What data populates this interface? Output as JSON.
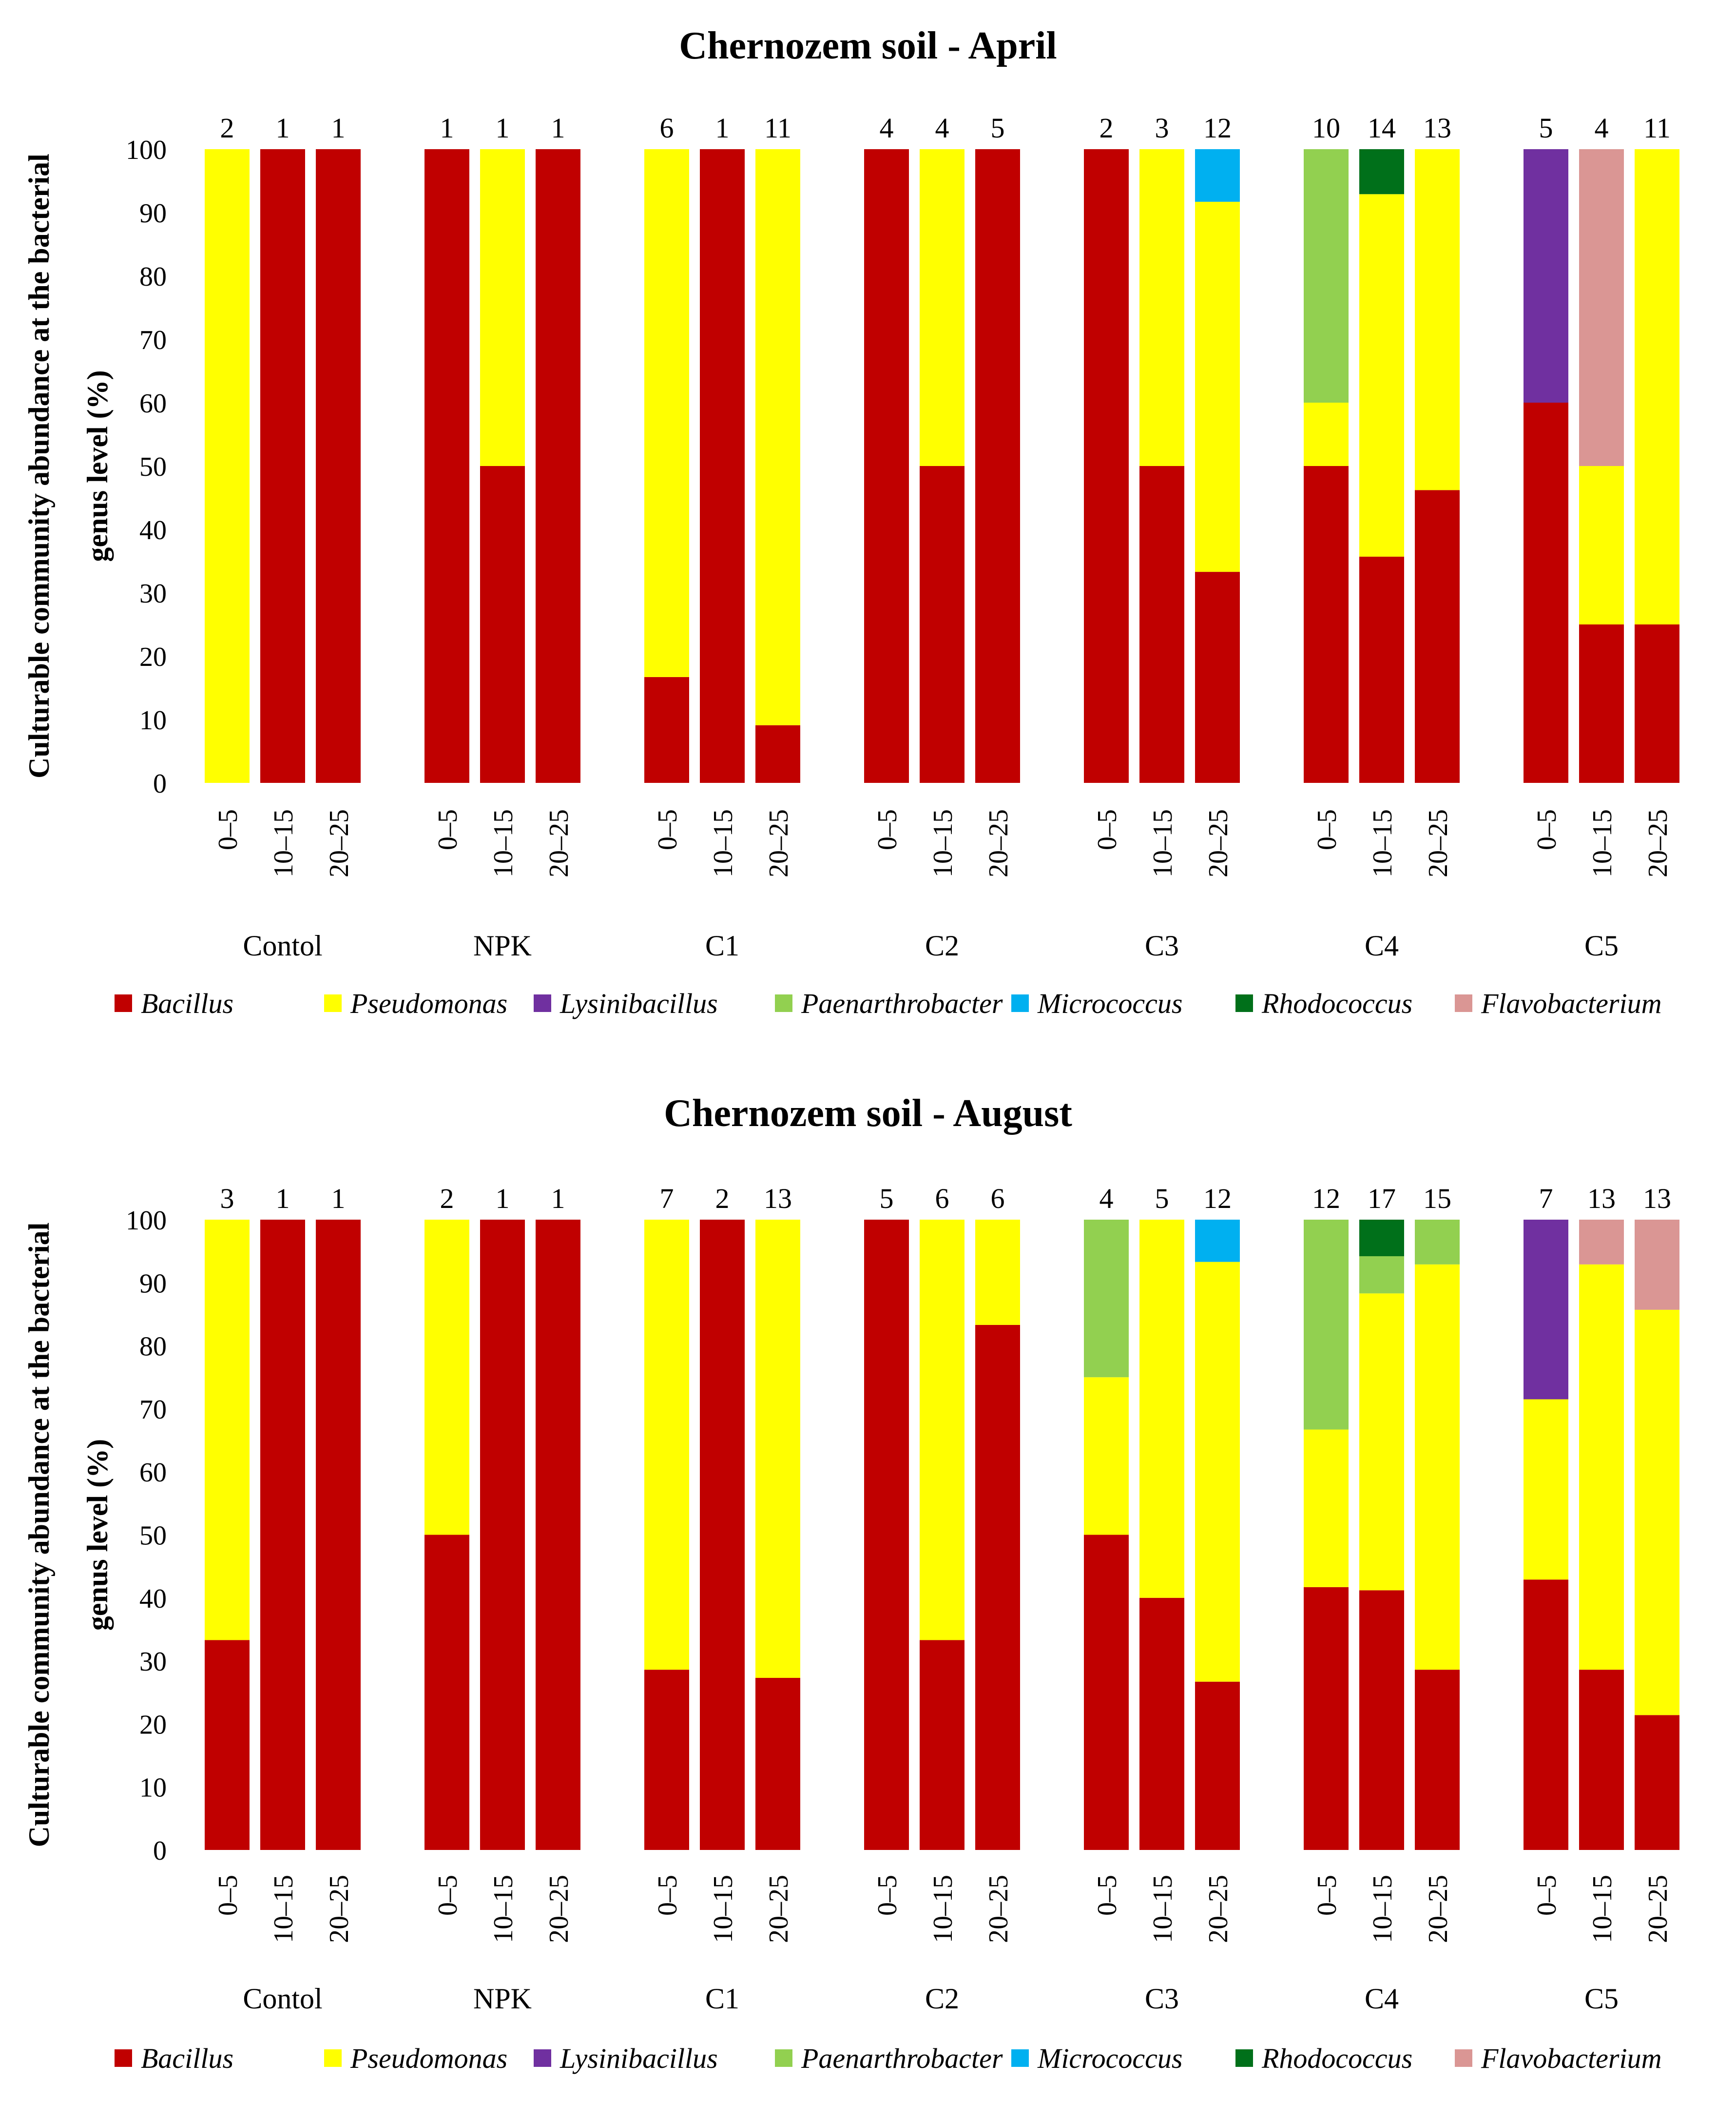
{
  "colors": {
    "Bacillus": "#C00000",
    "Pseudomonas": "#FFFF00",
    "Lysinibacillus": "#7030A0",
    "Paenarthrobacter": "#92D050",
    "Micrococcus": "#00B0F0",
    "Rhodococcus": "#00701A",
    "Flavobacterium": "#DA9694"
  },
  "chart_data": [
    {
      "type": "bar",
      "stacked": true,
      "title": "Chernozem soil - April",
      "ylabel_lines": [
        "Culturable community abundance at the bacterial",
        "genus level (%)"
      ],
      "ylim": [
        0,
        100
      ],
      "yticks": [
        0,
        10,
        20,
        30,
        40,
        50,
        60,
        70,
        80,
        90,
        100
      ],
      "legend_position": "bottom",
      "legend": [
        "Bacillus",
        "Pseudomonas",
        "Lysinibacillus",
        "Paenarthrobacter",
        "Micrococcus",
        "Rhodococcus",
        "Flavobacterium"
      ],
      "groups": [
        {
          "name": "Contol",
          "bars": [
            {
              "depth": "0–5",
              "count": "2",
              "segments": [
                {
                  "genus": "Pseudomonas",
                  "value": 100
                }
              ]
            },
            {
              "depth": "10–15",
              "count": "1",
              "segments": [
                {
                  "genus": "Bacillus",
                  "value": 100
                }
              ]
            },
            {
              "depth": "20–25",
              "count": "1",
              "segments": [
                {
                  "genus": "Bacillus",
                  "value": 100
                }
              ]
            }
          ]
        },
        {
          "name": "NPK",
          "bars": [
            {
              "depth": "0–5",
              "count": "1",
              "segments": [
                {
                  "genus": "Bacillus",
                  "value": 100
                }
              ]
            },
            {
              "depth": "10–15",
              "count": "1",
              "segments": [
                {
                  "genus": "Bacillus",
                  "value": 50
                },
                {
                  "genus": "Pseudomonas",
                  "value": 50
                }
              ]
            },
            {
              "depth": "20–25",
              "count": "1",
              "segments": [
                {
                  "genus": "Bacillus",
                  "value": 100
                }
              ]
            }
          ]
        },
        {
          "name": "C1",
          "bars": [
            {
              "depth": "0–5",
              "count": "6",
              "segments": [
                {
                  "genus": "Bacillus",
                  "value": 16.7
                },
                {
                  "genus": "Pseudomonas",
                  "value": 83.3
                }
              ]
            },
            {
              "depth": "10–15",
              "count": "1",
              "segments": [
                {
                  "genus": "Bacillus",
                  "value": 100
                }
              ]
            },
            {
              "depth": "20–25",
              "count": "11",
              "segments": [
                {
                  "genus": "Bacillus",
                  "value": 9.1
                },
                {
                  "genus": "Pseudomonas",
                  "value": 90.9
                }
              ]
            }
          ]
        },
        {
          "name": "C2",
          "bars": [
            {
              "depth": "0–5",
              "count": "4",
              "segments": [
                {
                  "genus": "Bacillus",
                  "value": 100
                }
              ]
            },
            {
              "depth": "10–15",
              "count": "4",
              "segments": [
                {
                  "genus": "Bacillus",
                  "value": 50
                },
                {
                  "genus": "Pseudomonas",
                  "value": 50
                }
              ]
            },
            {
              "depth": "20–25",
              "count": "5",
              "segments": [
                {
                  "genus": "Bacillus",
                  "value": 100
                }
              ]
            }
          ]
        },
        {
          "name": "C3",
          "bars": [
            {
              "depth": "0–5",
              "count": "2",
              "segments": [
                {
                  "genus": "Bacillus",
                  "value": 100
                }
              ]
            },
            {
              "depth": "10–15",
              "count": "3",
              "segments": [
                {
                  "genus": "Bacillus",
                  "value": 50
                },
                {
                  "genus": "Pseudomonas",
                  "value": 50
                }
              ]
            },
            {
              "depth": "20–25",
              "count": "12",
              "segments": [
                {
                  "genus": "Bacillus",
                  "value": 33.3
                },
                {
                  "genus": "Pseudomonas",
                  "value": 58.4
                },
                {
                  "genus": "Micrococcus",
                  "value": 8.3
                }
              ]
            }
          ]
        },
        {
          "name": "C4",
          "bars": [
            {
              "depth": "0–5",
              "count": "10",
              "segments": [
                {
                  "genus": "Bacillus",
                  "value": 50
                },
                {
                  "genus": "Pseudomonas",
                  "value": 10
                },
                {
                  "genus": "Paenarthrobacter",
                  "value": 40
                }
              ]
            },
            {
              "depth": "10–15",
              "count": "14",
              "segments": [
                {
                  "genus": "Bacillus",
                  "value": 35.7
                },
                {
                  "genus": "Pseudomonas",
                  "value": 57.2
                },
                {
                  "genus": "Rhodococcus",
                  "value": 7.1
                }
              ]
            },
            {
              "depth": "20–25",
              "count": "13",
              "segments": [
                {
                  "genus": "Bacillus",
                  "value": 46.2
                },
                {
                  "genus": "Pseudomonas",
                  "value": 53.8
                }
              ]
            }
          ]
        },
        {
          "name": "C5",
          "bars": [
            {
              "depth": "0–5",
              "count": "5",
              "segments": [
                {
                  "genus": "Bacillus",
                  "value": 60
                },
                {
                  "genus": "Lysinibacillus",
                  "value": 40
                }
              ]
            },
            {
              "depth": "10–15",
              "count": "4",
              "segments": [
                {
                  "genus": "Bacillus",
                  "value": 25
                },
                {
                  "genus": "Pseudomonas",
                  "value": 25
                },
                {
                  "genus": "Flavobacterium",
                  "value": 50
                }
              ]
            },
            {
              "depth": "20–25",
              "count": "11",
              "segments": [
                {
                  "genus": "Bacillus",
                  "value": 25
                },
                {
                  "genus": "Pseudomonas",
                  "value": 75
                }
              ]
            }
          ]
        }
      ]
    },
    {
      "type": "bar",
      "stacked": true,
      "title": "Chernozem soil - August",
      "ylabel_lines": [
        "Culturable community abundance at the bacterial",
        "genus level (%)"
      ],
      "ylim": [
        0,
        100
      ],
      "yticks": [
        0,
        10,
        20,
        30,
        40,
        50,
        60,
        70,
        80,
        90,
        100
      ],
      "legend_position": "bottom",
      "legend": [
        "Bacillus",
        "Pseudomonas",
        "Lysinibacillus",
        "Paenarthrobacter",
        "Micrococcus",
        "Rhodococcus",
        "Flavobacterium"
      ],
      "groups": [
        {
          "name": "Contol",
          "bars": [
            {
              "depth": "0–5",
              "count": "3",
              "segments": [
                {
                  "genus": "Bacillus",
                  "value": 33.3
                },
                {
                  "genus": "Pseudomonas",
                  "value": 66.7
                }
              ]
            },
            {
              "depth": "10–15",
              "count": "1",
              "segments": [
                {
                  "genus": "Bacillus",
                  "value": 100
                }
              ]
            },
            {
              "depth": "20–25",
              "count": "1",
              "segments": [
                {
                  "genus": "Bacillus",
                  "value": 100
                }
              ]
            }
          ]
        },
        {
          "name": "NPK",
          "bars": [
            {
              "depth": "0–5",
              "count": "2",
              "segments": [
                {
                  "genus": "Bacillus",
                  "value": 50
                },
                {
                  "genus": "Pseudomonas",
                  "value": 50
                }
              ]
            },
            {
              "depth": "10–15",
              "count": "1",
              "segments": [
                {
                  "genus": "Bacillus",
                  "value": 100
                }
              ]
            },
            {
              "depth": "20–25",
              "count": "1",
              "segments": [
                {
                  "genus": "Bacillus",
                  "value": 100
                }
              ]
            }
          ]
        },
        {
          "name": "C1",
          "bars": [
            {
              "depth": "0–5",
              "count": "7",
              "segments": [
                {
                  "genus": "Bacillus",
                  "value": 28.6
                },
                {
                  "genus": "Pseudomonas",
                  "value": 71.4
                }
              ]
            },
            {
              "depth": "10–15",
              "count": "2",
              "segments": [
                {
                  "genus": "Bacillus",
                  "value": 100
                }
              ]
            },
            {
              "depth": "20–25",
              "count": "13",
              "segments": [
                {
                  "genus": "Bacillus",
                  "value": 27.3
                },
                {
                  "genus": "Pseudomonas",
                  "value": 72.7
                }
              ]
            }
          ]
        },
        {
          "name": "C2",
          "bars": [
            {
              "depth": "0–5",
              "count": "5",
              "segments": [
                {
                  "genus": "Bacillus",
                  "value": 100
                }
              ]
            },
            {
              "depth": "10–15",
              "count": "6",
              "segments": [
                {
                  "genus": "Bacillus",
                  "value": 33.3
                },
                {
                  "genus": "Pseudomonas",
                  "value": 66.7
                }
              ]
            },
            {
              "depth": "20–25",
              "count": "6",
              "segments": [
                {
                  "genus": "Bacillus",
                  "value": 83.3
                },
                {
                  "genus": "Pseudomonas",
                  "value": 16.7
                }
              ]
            }
          ]
        },
        {
          "name": "C3",
          "bars": [
            {
              "depth": "0–5",
              "count": "4",
              "segments": [
                {
                  "genus": "Bacillus",
                  "value": 50
                },
                {
                  "genus": "Pseudomonas",
                  "value": 25
                },
                {
                  "genus": "Paenarthrobacter",
                  "value": 25
                }
              ]
            },
            {
              "depth": "10–15",
              "count": "5",
              "segments": [
                {
                  "genus": "Bacillus",
                  "value": 40
                },
                {
                  "genus": "Pseudomonas",
                  "value": 60
                }
              ]
            },
            {
              "depth": "20–25",
              "count": "12",
              "segments": [
                {
                  "genus": "Bacillus",
                  "value": 26.7
                },
                {
                  "genus": "Pseudomonas",
                  "value": 66.6
                },
                {
                  "genus": "Micrococcus",
                  "value": 6.7
                }
              ]
            }
          ]
        },
        {
          "name": "C4",
          "bars": [
            {
              "depth": "0–5",
              "count": "12",
              "segments": [
                {
                  "genus": "Bacillus",
                  "value": 41.7
                },
                {
                  "genus": "Pseudomonas",
                  "value": 25
                },
                {
                  "genus": "Paenarthrobacter",
                  "value": 33.3
                }
              ]
            },
            {
              "depth": "10–15",
              "count": "17",
              "segments": [
                {
                  "genus": "Bacillus",
                  "value": 41.2
                },
                {
                  "genus": "Pseudomonas",
                  "value": 47.1
                },
                {
                  "genus": "Paenarthrobacter",
                  "value": 5.9
                },
                {
                  "genus": "Rhodococcus",
                  "value": 5.8
                }
              ]
            },
            {
              "depth": "20–25",
              "count": "15",
              "segments": [
                {
                  "genus": "Bacillus",
                  "value": 28.6
                },
                {
                  "genus": "Pseudomonas",
                  "value": 64.3
                },
                {
                  "genus": "Paenarthrobacter",
                  "value": 7.1
                }
              ]
            }
          ]
        },
        {
          "name": "C5",
          "bars": [
            {
              "depth": "0–5",
              "count": "7",
              "segments": [
                {
                  "genus": "Bacillus",
                  "value": 42.9
                },
                {
                  "genus": "Pseudomonas",
                  "value": 28.6
                },
                {
                  "genus": "Lysinibacillus",
                  "value": 28.5
                }
              ]
            },
            {
              "depth": "10–15",
              "count": "13",
              "segments": [
                {
                  "genus": "Bacillus",
                  "value": 28.6
                },
                {
                  "genus": "Pseudomonas",
                  "value": 64.3
                },
                {
                  "genus": "Flavobacterium",
                  "value": 7.1
                }
              ]
            },
            {
              "depth": "20–25",
              "count": "13",
              "segments": [
                {
                  "genus": "Bacillus",
                  "value": 21.4
                },
                {
                  "genus": "Pseudomonas",
                  "value": 64.3
                },
                {
                  "genus": "Flavobacterium",
                  "value": 14.3
                }
              ]
            }
          ]
        }
      ]
    }
  ]
}
